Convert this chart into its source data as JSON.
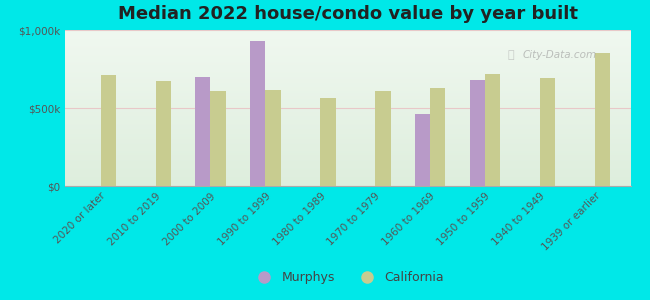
{
  "title": "Median 2022 house/condo value by year built",
  "categories": [
    "2020 or later",
    "2010 to 2019",
    "2000 to 2009",
    "1990 to 1999",
    "1980 to 1989",
    "1970 to 1979",
    "1960 to 1969",
    "1950 to 1959",
    "1940 to 1949",
    "1939 or earlier"
  ],
  "murphys": [
    null,
    null,
    700000,
    930000,
    null,
    null,
    460000,
    680000,
    null,
    null
  ],
  "california": [
    710000,
    670000,
    610000,
    615000,
    565000,
    610000,
    630000,
    720000,
    695000,
    850000
  ],
  "murphys_color": "#b89ac8",
  "california_color": "#c8cc90",
  "background_color": "#00e8e8",
  "plot_bg_color_top": "#deeedd",
  "plot_bg_color_bottom": "#f0f8f0",
  "ylim": [
    0,
    1000000
  ],
  "yticks": [
    0,
    500000,
    1000000
  ],
  "ytick_labels": [
    "$0",
    "$500k",
    "$1,000k"
  ],
  "watermark": "City-Data.com",
  "legend_labels": [
    "Murphys",
    "California"
  ],
  "bar_width": 0.28,
  "title_fontsize": 13,
  "tick_fontsize": 7.5,
  "legend_fontsize": 9,
  "grid_color": "#e8c8c8",
  "spine_color": "#aaaaaa"
}
